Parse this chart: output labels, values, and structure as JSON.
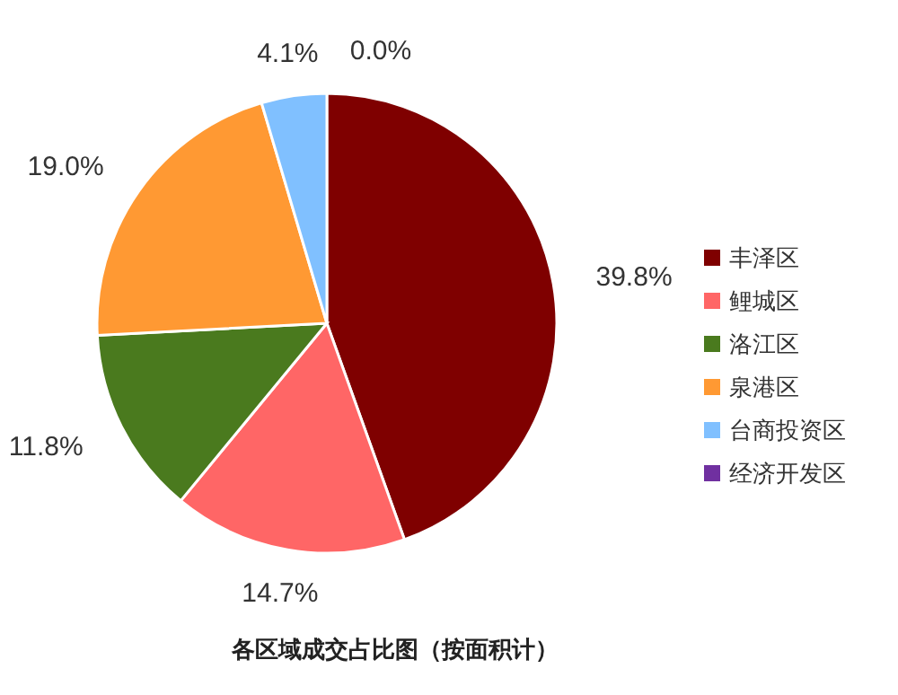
{
  "chart_data": {
    "type": "pie",
    "title": "各区域成交占比图（按面积计）",
    "categories": [
      "丰泽区",
      "鲤城区",
      "洛江区",
      "泉港区",
      "台商投资区",
      "经济开发区"
    ],
    "values": [
      39.8,
      14.7,
      11.8,
      19.0,
      4.1,
      0.0
    ],
    "colors": [
      "#7f0000",
      "#ff6666",
      "#4a7a1e",
      "#ff9933",
      "#80c0ff",
      "#7030a0"
    ],
    "value_labels": [
      "39.8%",
      "14.7%",
      "11.8%",
      "19.0%",
      "4.1%",
      "0.0%"
    ],
    "legend": "right"
  }
}
